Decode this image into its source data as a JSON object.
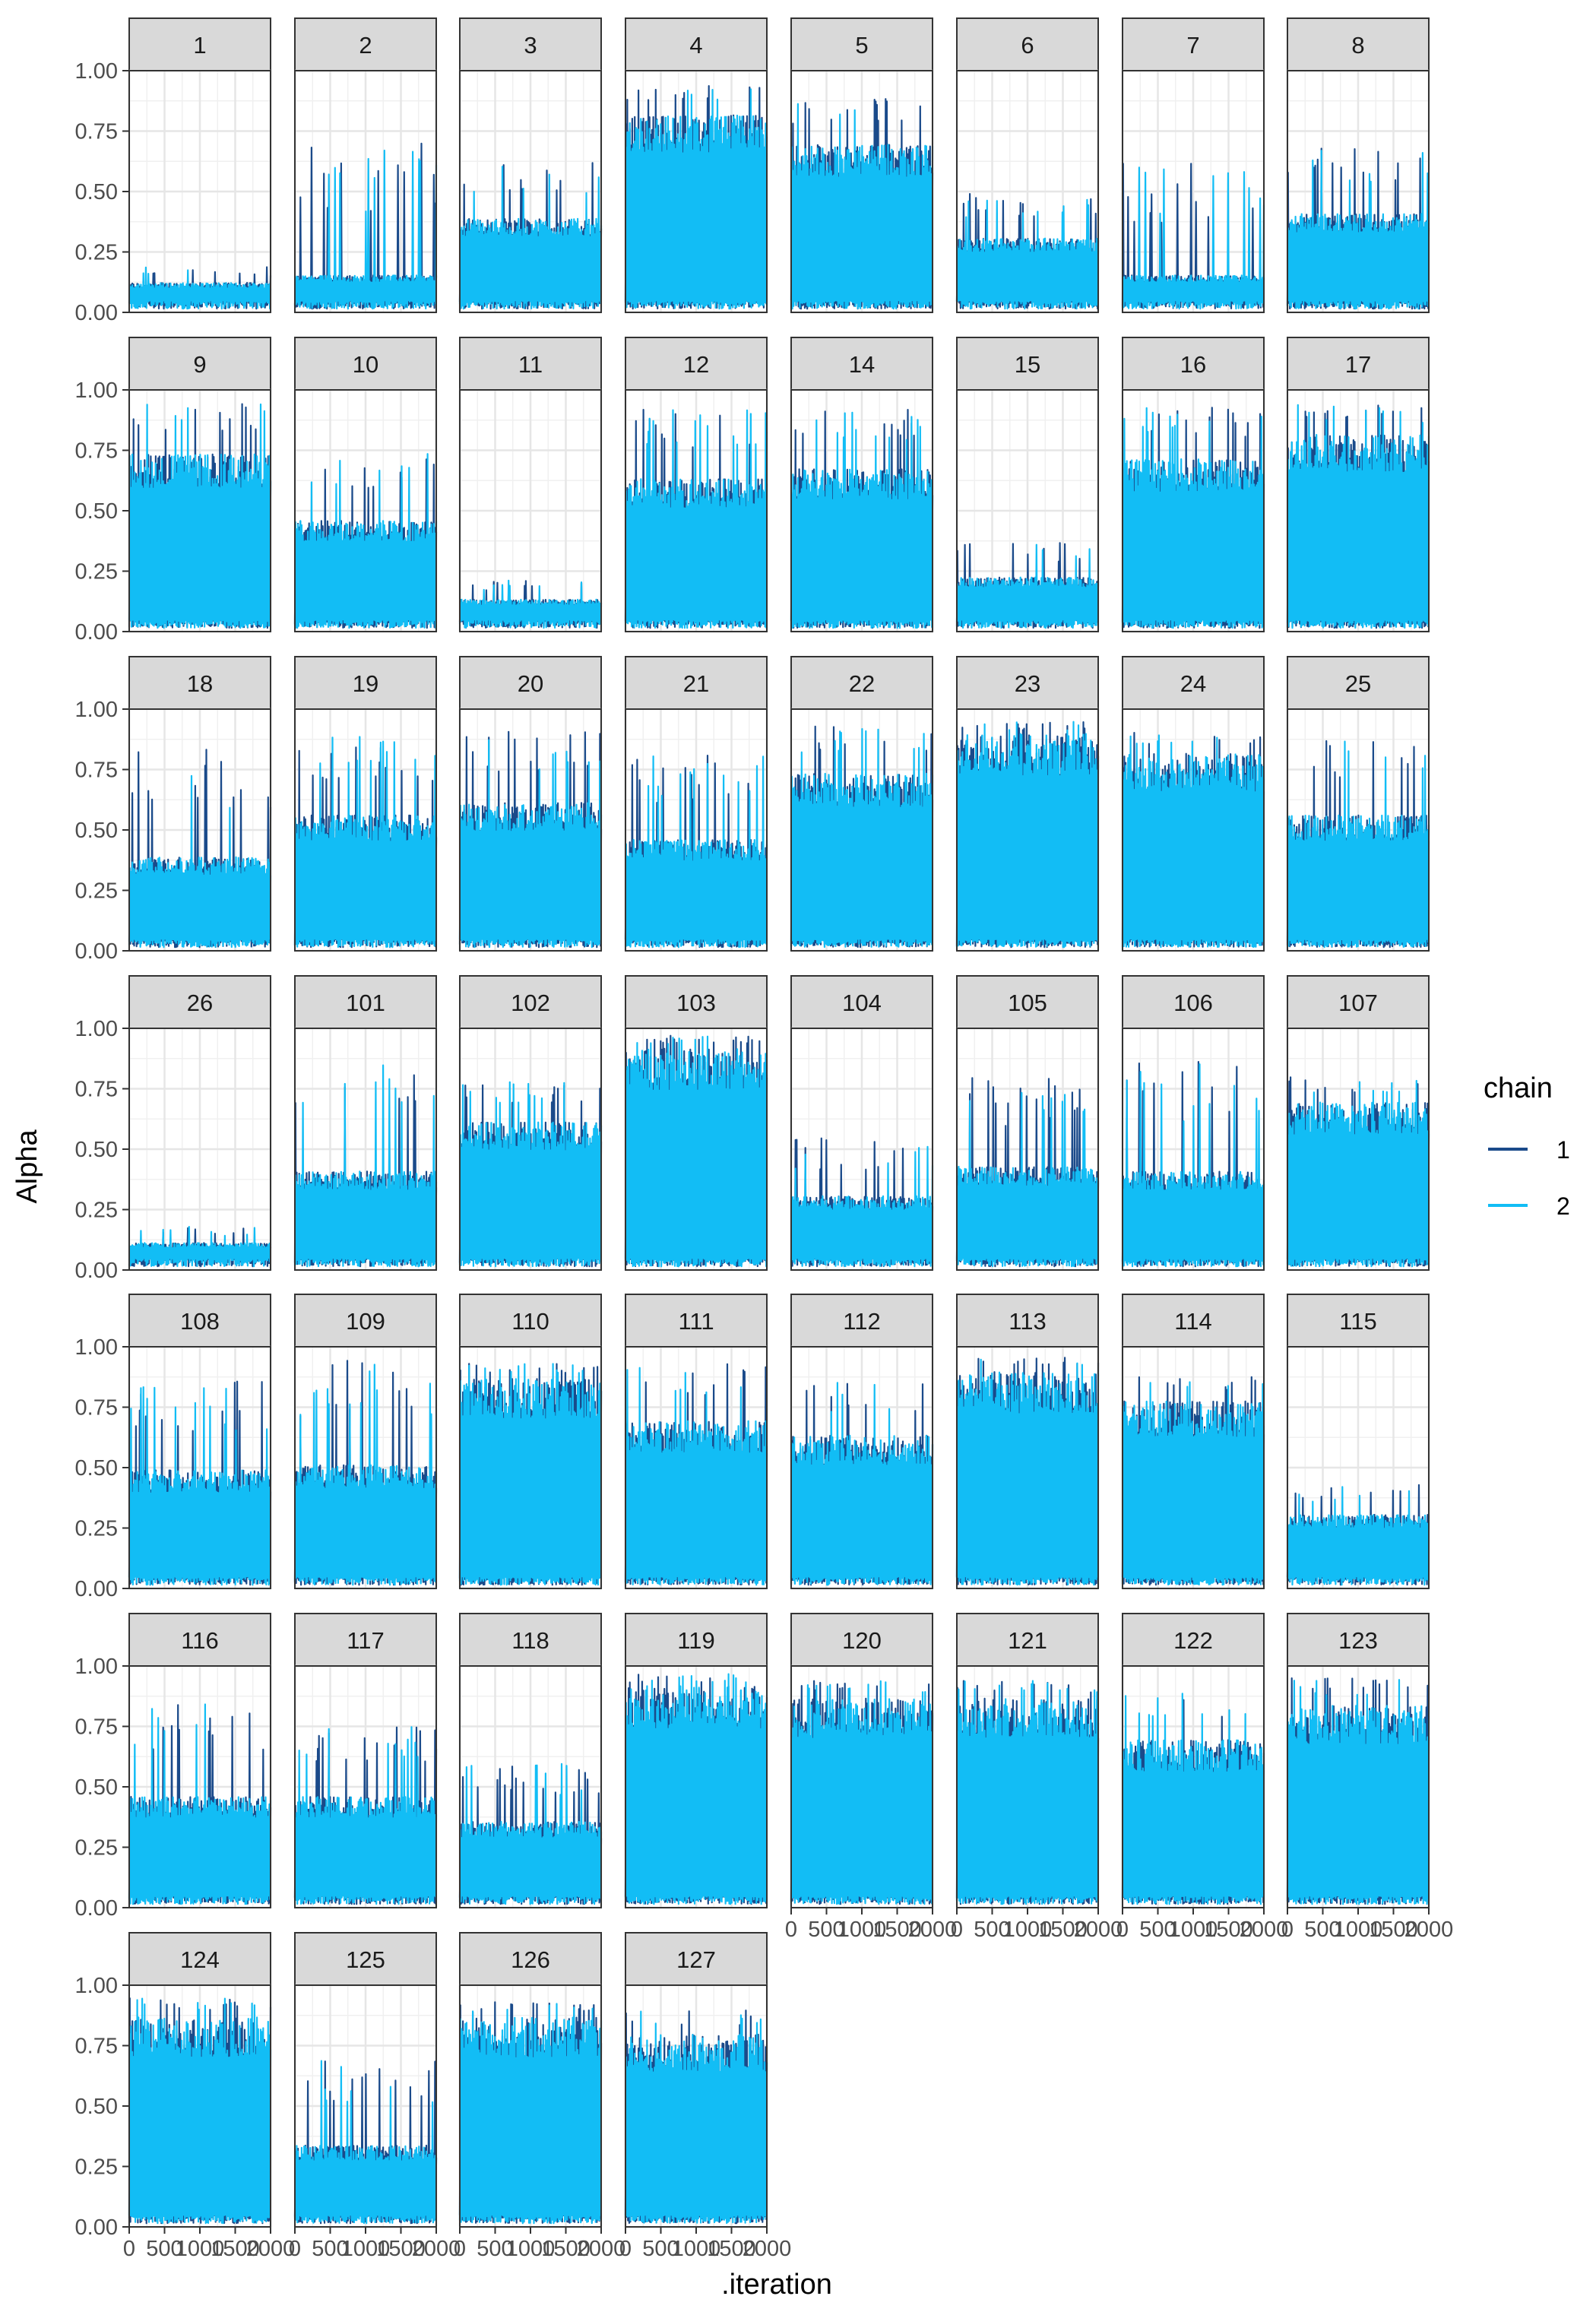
{
  "chart_data": {
    "type": "line",
    "title": "",
    "xlabel": ".iteration",
    "ylabel": "Alpha",
    "xlim": [
      0,
      2000
    ],
    "ylim": [
      0,
      1
    ],
    "x_ticks": [
      0,
      500,
      1000,
      1500,
      2000
    ],
    "x_tick_labels": [
      "0",
      "500",
      "1000",
      "1500",
      "2000"
    ],
    "y_ticks": [
      0,
      0.25,
      0.5,
      0.75,
      1.0
    ],
    "y_tick_labels": [
      "0.00",
      "0.25",
      "0.50",
      "0.75",
      "1.00"
    ],
    "grid": true,
    "legend": {
      "title": "chain",
      "placement": "right",
      "entries": [
        {
          "label": "1",
          "color": "#1a4a8a"
        },
        {
          "label": "2",
          "color": "#12bdf5"
        }
      ]
    },
    "facet_columns": 8,
    "panel_background": "#ffffff",
    "strip_background": "#d9d9d9",
    "panels": [
      {
        "label": "1",
        "typical": 0.12,
        "peak": 0.19
      },
      {
        "label": "2",
        "typical": 0.15,
        "peak": 0.72
      },
      {
        "label": "3",
        "typical": 0.38,
        "peak": 0.62
      },
      {
        "label": "4",
        "typical": 0.8,
        "peak": 0.94
      },
      {
        "label": "5",
        "typical": 0.68,
        "peak": 0.9
      },
      {
        "label": "6",
        "typical": 0.3,
        "peak": 0.5
      },
      {
        "label": "7",
        "typical": 0.15,
        "peak": 0.64
      },
      {
        "label": "8",
        "typical": 0.4,
        "peak": 0.68
      },
      {
        "label": "9",
        "typical": 0.72,
        "peak": 0.95
      },
      {
        "label": "10",
        "typical": 0.45,
        "peak": 0.74
      },
      {
        "label": "11",
        "typical": 0.13,
        "peak": 0.22
      },
      {
        "label": "12",
        "typical": 0.62,
        "peak": 0.92
      },
      {
        "label": "14",
        "typical": 0.66,
        "peak": 0.92
      },
      {
        "label": "15",
        "typical": 0.22,
        "peak": 0.37
      },
      {
        "label": "16",
        "typical": 0.7,
        "peak": 0.93
      },
      {
        "label": "17",
        "typical": 0.8,
        "peak": 0.94
      },
      {
        "label": "18",
        "typical": 0.38,
        "peak": 0.84
      },
      {
        "label": "19",
        "typical": 0.55,
        "peak": 0.89
      },
      {
        "label": "20",
        "typical": 0.6,
        "peak": 0.91
      },
      {
        "label": "21",
        "typical": 0.45,
        "peak": 0.81
      },
      {
        "label": "22",
        "typical": 0.72,
        "peak": 0.93
      },
      {
        "label": "23",
        "typical": 0.88,
        "peak": 0.95
      },
      {
        "label": "24",
        "typical": 0.8,
        "peak": 0.91
      },
      {
        "label": "25",
        "typical": 0.55,
        "peak": 0.88
      },
      {
        "label": "26",
        "typical": 0.11,
        "peak": 0.18
      },
      {
        "label": "101",
        "typical": 0.4,
        "peak": 0.85
      },
      {
        "label": "102",
        "typical": 0.6,
        "peak": 0.78
      },
      {
        "label": "103",
        "typical": 0.9,
        "peak": 0.97
      },
      {
        "label": "104",
        "typical": 0.3,
        "peak": 0.55
      },
      {
        "label": "105",
        "typical": 0.42,
        "peak": 0.8
      },
      {
        "label": "106",
        "typical": 0.4,
        "peak": 0.87
      },
      {
        "label": "107",
        "typical": 0.68,
        "peak": 0.8
      },
      {
        "label": "108",
        "typical": 0.48,
        "peak": 0.86
      },
      {
        "label": "109",
        "typical": 0.5,
        "peak": 0.95
      },
      {
        "label": "110",
        "typical": 0.85,
        "peak": 0.93
      },
      {
        "label": "111",
        "typical": 0.68,
        "peak": 0.93
      },
      {
        "label": "112",
        "typical": 0.62,
        "peak": 0.86
      },
      {
        "label": "113",
        "typical": 0.88,
        "peak": 0.97
      },
      {
        "label": "114",
        "typical": 0.76,
        "peak": 0.88
      },
      {
        "label": "115",
        "typical": 0.3,
        "peak": 0.43
      },
      {
        "label": "116",
        "typical": 0.45,
        "peak": 0.88
      },
      {
        "label": "117",
        "typical": 0.45,
        "peak": 0.75
      },
      {
        "label": "118",
        "typical": 0.35,
        "peak": 0.6
      },
      {
        "label": "119",
        "typical": 0.9,
        "peak": 0.97
      },
      {
        "label": "120",
        "typical": 0.85,
        "peak": 0.94
      },
      {
        "label": "121",
        "typical": 0.85,
        "peak": 0.94
      },
      {
        "label": "122",
        "typical": 0.68,
        "peak": 0.92
      },
      {
        "label": "123",
        "typical": 0.82,
        "peak": 0.95
      },
      {
        "label": "124",
        "typical": 0.85,
        "peak": 0.95
      },
      {
        "label": "125",
        "typical": 0.33,
        "peak": 0.69
      },
      {
        "label": "126",
        "typical": 0.85,
        "peak": 0.93
      },
      {
        "label": "127",
        "typical": 0.78,
        "peak": 0.9
      }
    ]
  }
}
